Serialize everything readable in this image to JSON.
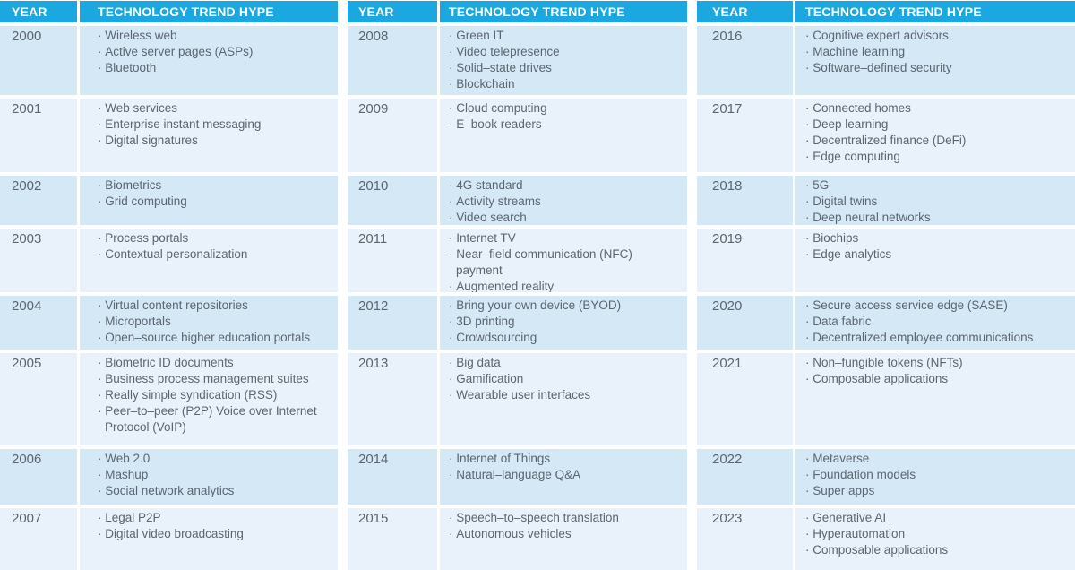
{
  "table": {
    "bullet": "·",
    "header": {
      "year_label": "YEAR",
      "trend_label": "TECHNOLOGY TREND HYPE"
    },
    "colors": {
      "header_bg": "#1BA7E0",
      "header_text": "#FFFFFF",
      "row_dark": "#D5E8F6",
      "row_light": "#E9F1FA",
      "text": "#5B6670"
    },
    "groups": [
      {
        "rows": [
          {
            "year": "2000",
            "items": [
              "Wireless web",
              "Active server pages (ASPs)",
              "Bluetooth"
            ]
          },
          {
            "year": "2001",
            "items": [
              "Web services",
              "Enterprise instant messaging",
              "Digital signatures"
            ]
          },
          {
            "year": "2002",
            "items": [
              "Biometrics",
              "Grid computing"
            ]
          },
          {
            "year": "2003",
            "items": [
              "Process portals",
              "Contextual personalization"
            ]
          },
          {
            "year": "2004",
            "items": [
              "Virtual content repositories",
              "Microportals",
              "Open–source higher education portals"
            ]
          },
          {
            "year": "2005",
            "items": [
              "Biometric ID documents",
              "Business process management suites",
              "Really simple syndication (RSS)",
              "Peer–to–peer (P2P) Voice over Internet Protocol (VoIP)"
            ]
          },
          {
            "year": "2006",
            "items": [
              "Web 2.0",
              "Mashup",
              "Social network analytics"
            ]
          },
          {
            "year": "2007",
            "items": [
              "Legal P2P",
              "Digital video broadcasting"
            ]
          }
        ]
      },
      {
        "rows": [
          {
            "year": "2008",
            "items": [
              "Green IT",
              "Video telepresence",
              "Solid–state drives",
              "Blockchain"
            ]
          },
          {
            "year": "2009",
            "items": [
              "Cloud computing",
              "E–book readers"
            ]
          },
          {
            "year": "2010",
            "items": [
              "4G standard",
              "Activity streams",
              "Video search"
            ]
          },
          {
            "year": "2011",
            "items": [
              "Internet TV",
              "Near–field communication (NFC) payment",
              "Augmented reality"
            ]
          },
          {
            "year": "2012",
            "items": [
              "Bring your own device (BYOD)",
              "3D printing",
              "Crowdsourcing"
            ]
          },
          {
            "year": "2013",
            "items": [
              "Big data",
              "Gamification",
              "Wearable user interfaces"
            ]
          },
          {
            "year": "2014",
            "items": [
              "Internet of Things",
              "Natural–language Q&A"
            ]
          },
          {
            "year": "2015",
            "items": [
              "Speech–to–speech translation",
              "Autonomous vehicles"
            ]
          }
        ]
      },
      {
        "rows": [
          {
            "year": "2016",
            "items": [
              "Cognitive expert advisors",
              "Machine learning",
              "Software–defined security"
            ]
          },
          {
            "year": "2017",
            "items": [
              "Connected homes",
              "Deep learning",
              "Decentralized finance (DeFi)",
              "Edge computing"
            ]
          },
          {
            "year": "2018",
            "items": [
              "5G",
              "Digital twins",
              "Deep neural networks"
            ]
          },
          {
            "year": "2019",
            "items": [
              "Biochips",
              "Edge analytics"
            ]
          },
          {
            "year": "2020",
            "items": [
              "Secure access service edge (SASE)",
              "Data fabric",
              "Decentralized employee communications"
            ]
          },
          {
            "year": "2021",
            "items": [
              "Non–fungible tokens (NFTs)",
              "Composable applications"
            ]
          },
          {
            "year": "2022",
            "items": [
              "Metaverse",
              "Foundation models",
              "Super apps"
            ]
          },
          {
            "year": "2023",
            "items": [
              "Generative AI",
              "Hyperautomation",
              "Composable applications"
            ]
          }
        ]
      }
    ]
  }
}
